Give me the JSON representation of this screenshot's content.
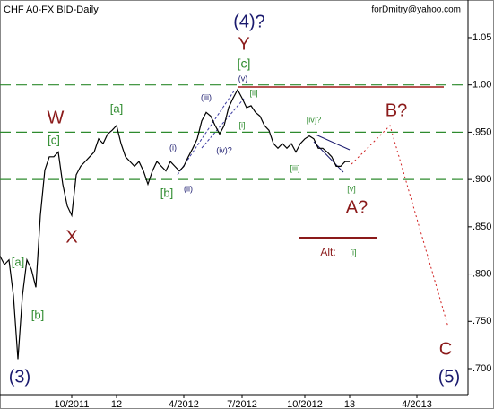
{
  "chart_data": {
    "type": "line",
    "title": "CHF A0-FX BID-Daily",
    "subtitle": "forDmitry@yahoo.com",
    "color": "#000000",
    "x": [
      0,
      1,
      2,
      3,
      4,
      5,
      6,
      7,
      8,
      9,
      10,
      11,
      12,
      13,
      14,
      15,
      16,
      17,
      18,
      19,
      20,
      21,
      22,
      23,
      24,
      25,
      26,
      27,
      28,
      29,
      30,
      31,
      32,
      33,
      34,
      35,
      36,
      37,
      38,
      39,
      40,
      41,
      42,
      43,
      44,
      45,
      46,
      47,
      48,
      49,
      50,
      51,
      52,
      53,
      54,
      55,
      56,
      57,
      58,
      59,
      60,
      61,
      62,
      63,
      64,
      65,
      66,
      67,
      68,
      69,
      70,
      71,
      72,
      73,
      74,
      75,
      76,
      77,
      78
    ],
    "values": [
      0.819,
      0.81,
      0.815,
      0.777,
      0.71,
      0.777,
      0.815,
      0.805,
      0.786,
      0.862,
      0.91,
      0.924,
      0.924,
      0.929,
      0.895,
      0.872,
      0.862,
      0.905,
      0.914,
      0.919,
      0.924,
      0.929,
      0.943,
      0.938,
      0.948,
      0.952,
      0.957,
      0.938,
      0.924,
      0.919,
      0.914,
      0.919,
      0.909,
      0.895,
      0.909,
      0.919,
      0.914,
      0.909,
      0.919,
      0.914,
      0.909,
      0.914,
      0.924,
      0.933,
      0.943,
      0.962,
      0.971,
      0.967,
      0.957,
      0.948,
      0.957,
      0.976,
      0.986,
      0.995,
      0.986,
      0.976,
      0.978,
      0.971,
      0.967,
      0.957,
      0.952,
      0.938,
      0.933,
      0.938,
      0.933,
      0.938,
      0.929,
      0.938,
      0.943,
      0.946,
      0.943,
      0.933,
      0.933,
      0.929,
      0.924,
      0.914,
      0.914,
      0.919,
      0.919
    ],
    "xlim": [
      0,
      104.4
    ],
    "xticks": [
      {
        "value": 16,
        "label": "10/2011"
      },
      {
        "value": 26,
        "label": "12"
      },
      {
        "value": 41,
        "label": "4/2012"
      },
      {
        "value": 54,
        "label": "7/2012"
      },
      {
        "value": 68,
        "label": "10/2012"
      },
      {
        "value": 78,
        "label": "13"
      },
      {
        "value": 93,
        "label": "4/2013"
      }
    ],
    "ylim": [
      0.6725,
      1.0898
    ],
    "yticks": [
      1.05,
      {
        "value": 1,
        "label": "1.00"
      },
      {
        "value": 0.95,
        "label": ".950"
      },
      {
        "value": 0.9,
        "label": ".900"
      },
      {
        "value": 0.85,
        "label": ".850"
      },
      {
        "value": 0.8,
        "label": ".800"
      },
      {
        "value": 0.75,
        "label": ".750"
      },
      {
        "value": 0.7,
        "label": ".700"
      }
    ],
    "hlines": [
      1,
      0.95,
      0.9
    ],
    "hline_color": "#2e8b2e",
    "annotations": [
      "(4)?",
      "Y",
      "[c]",
      "(v)",
      "[ii]",
      "(iii)",
      "[i]",
      "(i)",
      "(iv)?",
      "(ii)",
      "[b]",
      "[a]",
      "W",
      "[c]",
      "X",
      "[a]",
      "[b]",
      "(3)",
      "[iv]?",
      "[iii]",
      "[v]",
      "A?",
      "B?",
      "Alt:",
      "[i]",
      "C",
      "(5)"
    ]
  }
}
